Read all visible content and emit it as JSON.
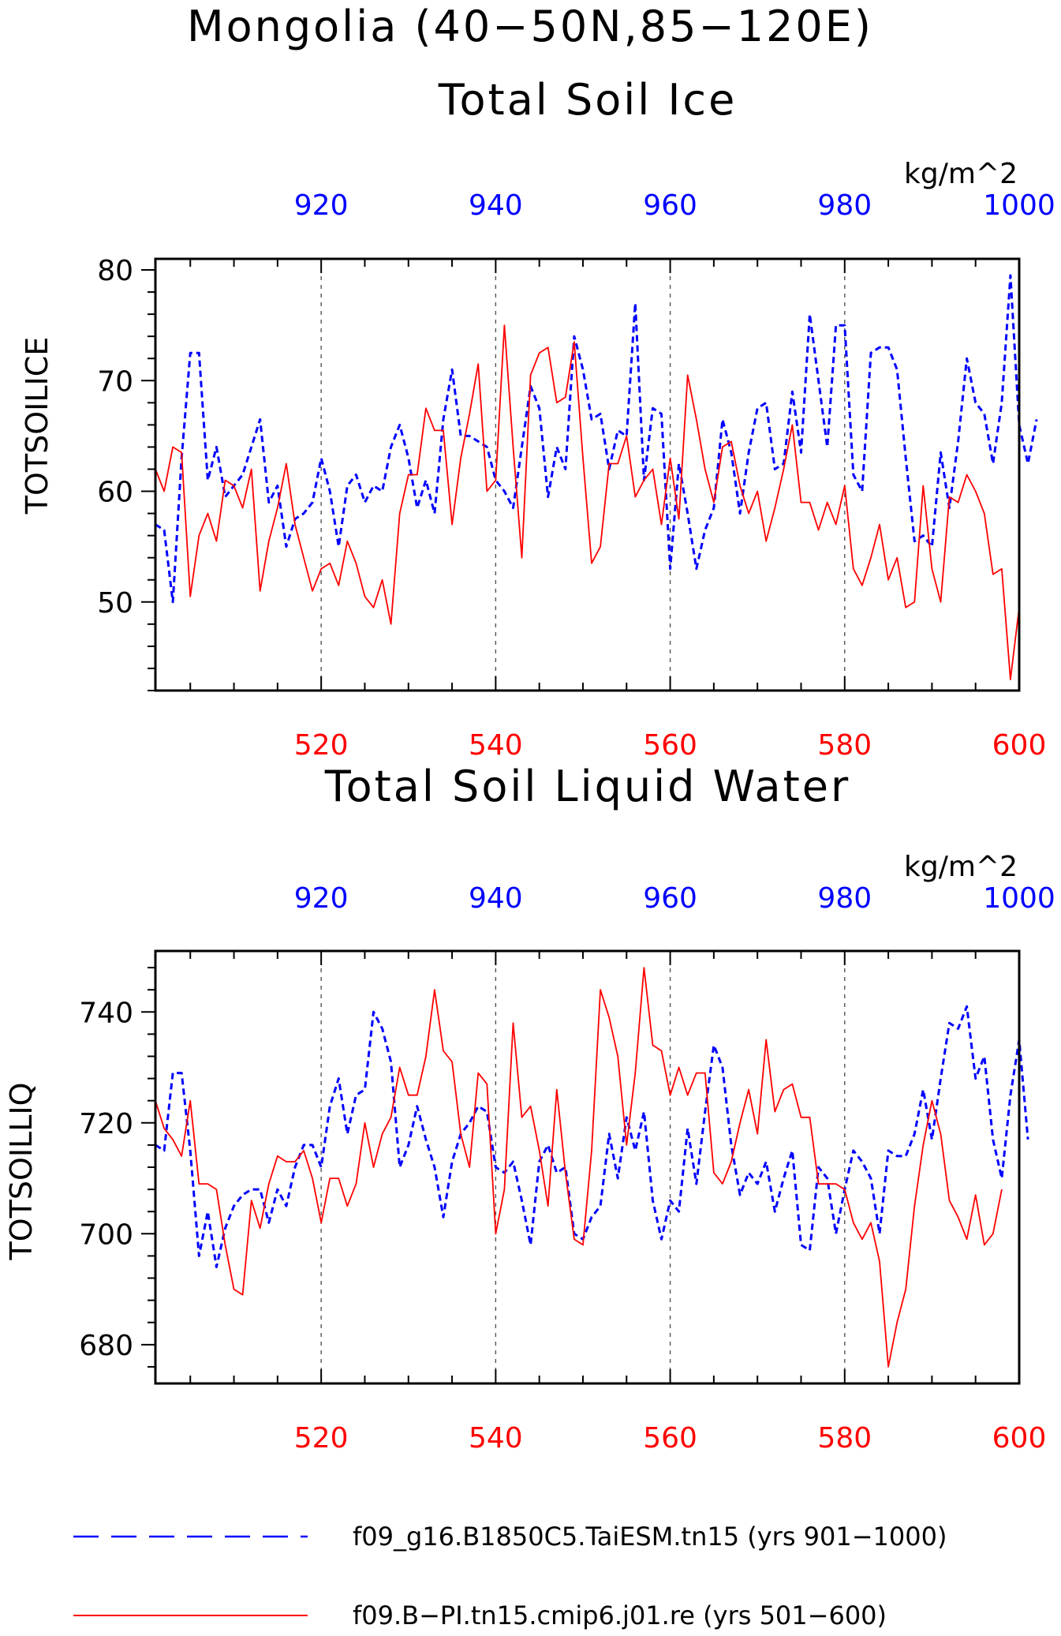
{
  "figure": {
    "title": "Mongolia (40−50N,85−120E)",
    "bottom_color": "#ff0000",
    "top_color": "#0000ff"
  },
  "legend": [
    {
      "label": "f09_g16.B1850C5.TaiESM.tn15 (yrs 901−1000)",
      "color": "#0000ff",
      "style": "dashed"
    },
    {
      "label": "f09.B−PI.tn15.cmip6.j01.re (yrs 501−600)",
      "color": "#ff0000",
      "style": "solid"
    }
  ],
  "chart_data": [
    {
      "type": "line",
      "title": "Total Soil Ice",
      "ylabel": "TOTSOILICE",
      "units": "kg/m^2",
      "ylim": [
        42,
        81
      ],
      "yticks": [
        50,
        60,
        70,
        80
      ],
      "grid": "vertical dashed",
      "x_bottom": {
        "range": [
          501,
          600
        ],
        "ticks": [
          520,
          540,
          560,
          580,
          600
        ],
        "color": "#ff0000"
      },
      "x_top": {
        "range": [
          901,
          1000
        ],
        "ticks": [
          920,
          940,
          960,
          980,
          1000
        ],
        "color": "#0000ff"
      },
      "series": [
        {
          "name": "f09_g16.B1850C5.TaiESM.tn15 (yrs 901−1000)",
          "axis": "top",
          "color": "#0000ff",
          "style": "dashed",
          "values": [
            57,
            56.5,
            50,
            63,
            72.5,
            72.5,
            61,
            64,
            59.5,
            60.5,
            61.5,
            64,
            66.5,
            59,
            60.5,
            55,
            57.5,
            58,
            59,
            63,
            60,
            55,
            60.5,
            61.5,
            59,
            60.5,
            60,
            64,
            66,
            63,
            58.5,
            61,
            58,
            66.5,
            71,
            65,
            65,
            64.5,
            64,
            61,
            60,
            58.5,
            64,
            69.5,
            67.5,
            59.5,
            64,
            62,
            74,
            71,
            66.5,
            67,
            62,
            65.5,
            65,
            77,
            61,
            67.5,
            67,
            53,
            62.5,
            58,
            53,
            56.5,
            58.5,
            66.5,
            63.5,
            58,
            63.5,
            67.5,
            68,
            62,
            62.5,
            69,
            63.5,
            76,
            70,
            64,
            75,
            75,
            61.5,
            60,
            72.5,
            73,
            73,
            71,
            63,
            55.5,
            56,
            55,
            63.5,
            58.5,
            64.5,
            72,
            68,
            67,
            62.5,
            68,
            79.5,
            66,
            62.5,
            66.5
          ]
        },
        {
          "name": "f09.B−PI.tn15.cmip6.j01.re (yrs 501−600)",
          "axis": "bottom",
          "color": "#ff0000",
          "style": "solid",
          "values": [
            62,
            60,
            64,
            63.5,
            50.5,
            56,
            58,
            55.5,
            61,
            60.5,
            58.5,
            62,
            51,
            55.5,
            58.5,
            62.5,
            57,
            54,
            51,
            53,
            53.5,
            51.5,
            55.5,
            53.5,
            50.5,
            49.5,
            52,
            48,
            58,
            61.5,
            61.5,
            67.5,
            65.5,
            65.5,
            57,
            63,
            67,
            71.5,
            60,
            61,
            75,
            64,
            54,
            70.5,
            72.5,
            73,
            68,
            68.5,
            73.5,
            63,
            53.5,
            55,
            62.5,
            62.5,
            65,
            59.5,
            61,
            62,
            57,
            63,
            57.5,
            70.5,
            66.5,
            62,
            59,
            64,
            64.5,
            60.5,
            58,
            60,
            55.5,
            58.5,
            62,
            66,
            59,
            59,
            56.5,
            59,
            57,
            60.5,
            53,
            51.5,
            54,
            57,
            52,
            54,
            49.5,
            50,
            60.5,
            53,
            50,
            59.5,
            59,
            61.5,
            60,
            58,
            52.5,
            53,
            43,
            49.5
          ]
        }
      ]
    },
    {
      "type": "line",
      "title": "Total Soil Liquid Water",
      "ylabel": "TOTSOILLIQ",
      "units": "kg/m^2",
      "ylim": [
        673,
        751
      ],
      "yticks": [
        680,
        700,
        720,
        740
      ],
      "grid": "vertical dashed",
      "x_bottom": {
        "range": [
          501,
          600
        ],
        "ticks": [
          520,
          540,
          560,
          580,
          600
        ],
        "color": "#ff0000"
      },
      "x_top": {
        "range": [
          901,
          1000
        ],
        "ticks": [
          920,
          940,
          960,
          980,
          1000
        ],
        "color": "#0000ff"
      },
      "series": [
        {
          "name": "f09_g16.B1850C5.TaiESM.tn15 (yrs 901−1000)",
          "axis": "top",
          "color": "#0000ff",
          "style": "dashed",
          "values": [
            716,
            715,
            729,
            729,
            715,
            696,
            704,
            694,
            701,
            705,
            707,
            708,
            708,
            702,
            708,
            705,
            712,
            716,
            716,
            712,
            723,
            728,
            718,
            725,
            726,
            740,
            737,
            731,
            712,
            716,
            723,
            717,
            712,
            703,
            713,
            718,
            720,
            723,
            722,
            712,
            711,
            713,
            706,
            698,
            713,
            716,
            711,
            712,
            700,
            699,
            703,
            705,
            718,
            710,
            721,
            715,
            722,
            706,
            699,
            706,
            704,
            719,
            709,
            722,
            734,
            730,
            716,
            707,
            711,
            709,
            713,
            704,
            710,
            715,
            698,
            697,
            712,
            710,
            700,
            708,
            715,
            713,
            710,
            700,
            715,
            714,
            714,
            718,
            726,
            717,
            728,
            738,
            737,
            741,
            728,
            732,
            717,
            710,
            725,
            735,
            717
          ]
        },
        {
          "name": "f09.B−PI.tn15.cmip6.j01.re (yrs 501−600)",
          "axis": "bottom",
          "color": "#ff0000",
          "style": "solid",
          "values": [
            724,
            719,
            717,
            714,
            724,
            709,
            709,
            708,
            698,
            690,
            689,
            706,
            701,
            709,
            714,
            713,
            713,
            715,
            710,
            702,
            710,
            710,
            705,
            709,
            720,
            712,
            718,
            721,
            730,
            725,
            725,
            732,
            744,
            733,
            731,
            718,
            712,
            729,
            727,
            700,
            708,
            738,
            721,
            723,
            715,
            705,
            726,
            711,
            699,
            698,
            715,
            744,
            739,
            732,
            716,
            729,
            748,
            734,
            733,
            725,
            730,
            725,
            729,
            729,
            711,
            709,
            713,
            720,
            726,
            718,
            735,
            722,
            726,
            727,
            721,
            721,
            709,
            709,
            709,
            708,
            702,
            699,
            702,
            695,
            676,
            684,
            690,
            705,
            716,
            724,
            718,
            706,
            703,
            699,
            707,
            698,
            700,
            708
          ]
        }
      ]
    }
  ]
}
